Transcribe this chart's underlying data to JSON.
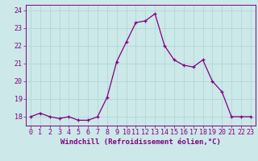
{
  "x": [
    0,
    1,
    2,
    3,
    4,
    5,
    6,
    7,
    8,
    9,
    10,
    11,
    12,
    13,
    14,
    15,
    16,
    17,
    18,
    19,
    20,
    21,
    22,
    23
  ],
  "y": [
    18.0,
    18.2,
    18.0,
    17.9,
    18.0,
    17.8,
    17.8,
    18.0,
    19.1,
    21.1,
    22.2,
    23.3,
    23.4,
    23.8,
    22.0,
    21.2,
    20.9,
    20.8,
    21.2,
    20.0,
    19.4,
    18.0,
    18.0,
    18.0
  ],
  "line_color": "#800080",
  "marker": "+",
  "marker_size": 3.5,
  "background_color": "#cce8e8",
  "grid_color": "#aad4d4",
  "xlabel": "Windchill (Refroidissement éolien,°C)",
  "ylim": [
    17.5,
    24.3
  ],
  "xlim": [
    -0.5,
    23.5
  ],
  "yticks": [
    18,
    19,
    20,
    21,
    22,
    23,
    24
  ],
  "xticks": [
    0,
    1,
    2,
    3,
    4,
    5,
    6,
    7,
    8,
    9,
    10,
    11,
    12,
    13,
    14,
    15,
    16,
    17,
    18,
    19,
    20,
    21,
    22,
    23
  ],
  "axis_color": "#800080",
  "tick_color": "#800080",
  "label_color": "#800080",
  "xlabel_fontsize": 6.5,
  "tick_fontsize": 6.0,
  "linewidth": 0.9,
  "markeredgewidth": 0.9
}
